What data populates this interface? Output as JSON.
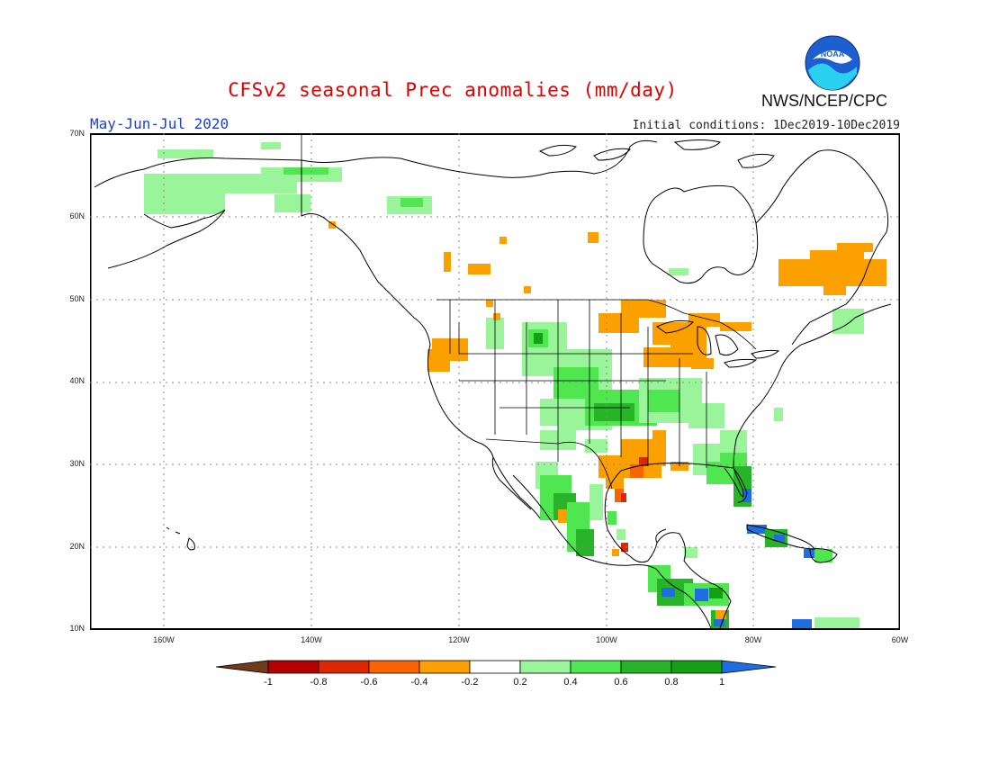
{
  "title": "CFSv2 seasonal Prec anomalies (mm/day)",
  "agency": "NWS/NCEP/CPC",
  "logo_text": "NOAA",
  "season": "May-Jun-Jul 2020",
  "initial_conditions": "Initial conditions: 1Dec2019-10Dec2019",
  "lat_labels": [
    "70N",
    "60N",
    "50N",
    "40N",
    "30N",
    "20N",
    "10N"
  ],
  "lon_labels": [
    "160W",
    "140W",
    "120W",
    "100W",
    "80W",
    "60W"
  ],
  "colorbar": {
    "labels": [
      "-1",
      "-0.8",
      "-0.6",
      "-0.4",
      "-0.2",
      "0.2",
      "0.4",
      "0.6",
      "0.8",
      "1"
    ],
    "colors": [
      "#6e3b1d",
      "#b40000",
      "#dc2800",
      "#fa6400",
      "#fca000",
      "#ffffff",
      "#9af59a",
      "#50e650",
      "#28b428",
      "#14a014",
      "#1e6ee1"
    ]
  },
  "colors": {
    "title": "#e00000",
    "season": "#1a3fd6",
    "grid": "#888888"
  }
}
